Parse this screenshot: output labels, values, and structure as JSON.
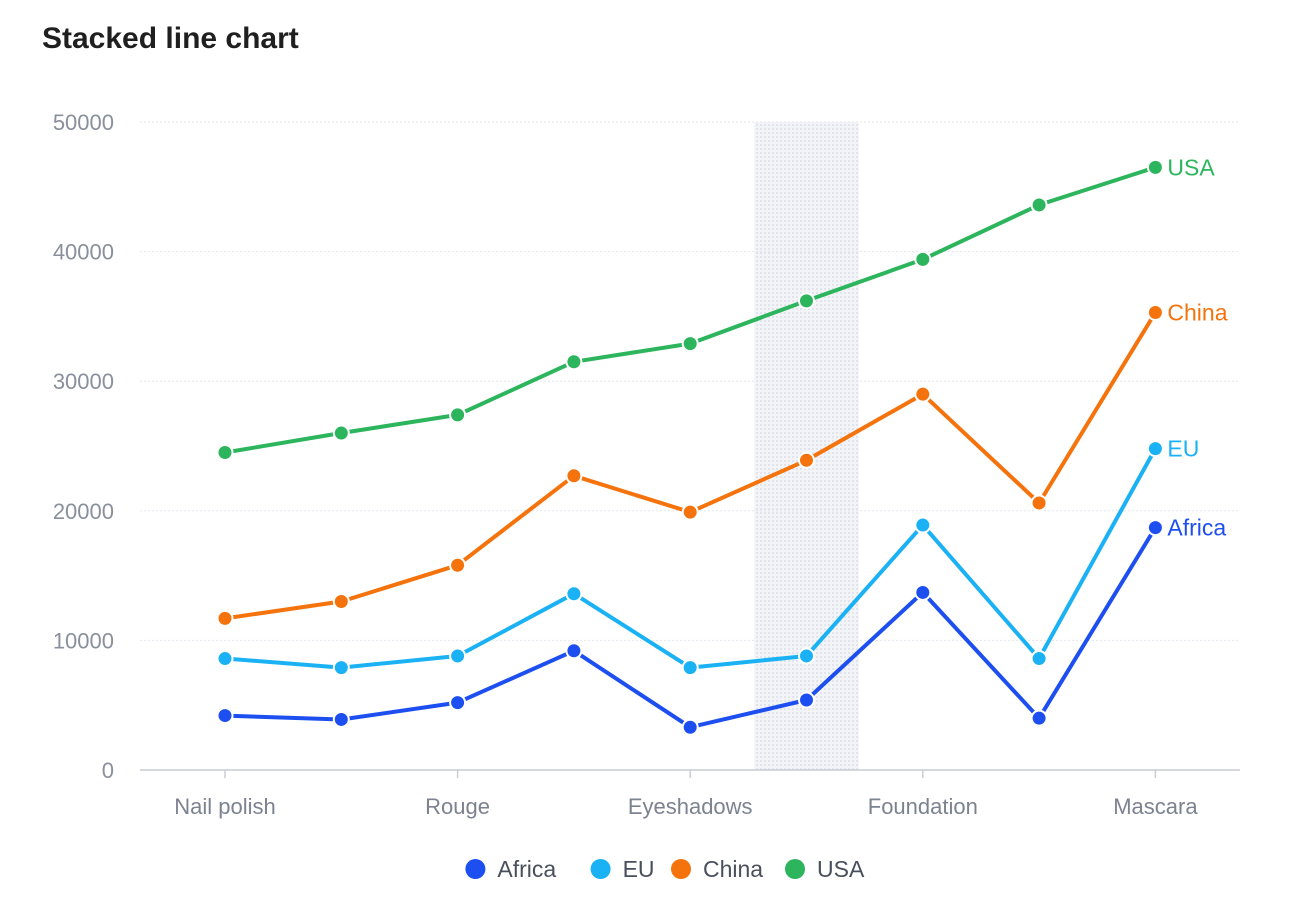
{
  "title": "Stacked line chart",
  "chart_data": {
    "type": "line",
    "title": "Stacked line chart",
    "xlabel": "",
    "ylabel": "",
    "stacked": true,
    "x": [
      "Nail polish",
      "",
      "Rouge",
      "",
      "Eyeshadows",
      "",
      "Foundation",
      "",
      "Mascara"
    ],
    "x_tick_labels": [
      "Nail polish",
      "Rouge",
      "Eyeshadows",
      "Foundation",
      "Mascara"
    ],
    "ylim": [
      0,
      50000
    ],
    "y_ticks": [
      "0",
      "10000",
      "20000",
      "30000",
      "40000",
      "50000"
    ],
    "grid": true,
    "legend_position": "bottom",
    "highlighted_x_index": 5,
    "series": [
      {
        "name": "Africa",
        "color": "#1d4ff0",
        "values": [
          4200,
          3900,
          5200,
          9200,
          3300,
          5400,
          13700,
          4000,
          18700
        ]
      },
      {
        "name": "EU",
        "color": "#1ab2f5",
        "values": [
          8600,
          7900,
          8800,
          13600,
          7900,
          8800,
          18900,
          8600,
          24800
        ]
      },
      {
        "name": "China",
        "color": "#f5730c",
        "values": [
          11700,
          13000,
          15800,
          22700,
          19900,
          23900,
          29000,
          20600,
          35300
        ]
      },
      {
        "name": "USA",
        "color": "#2db55d",
        "values": [
          24500,
          26000,
          27400,
          31500,
          32900,
          36200,
          39400,
          43600,
          46500
        ]
      }
    ]
  }
}
